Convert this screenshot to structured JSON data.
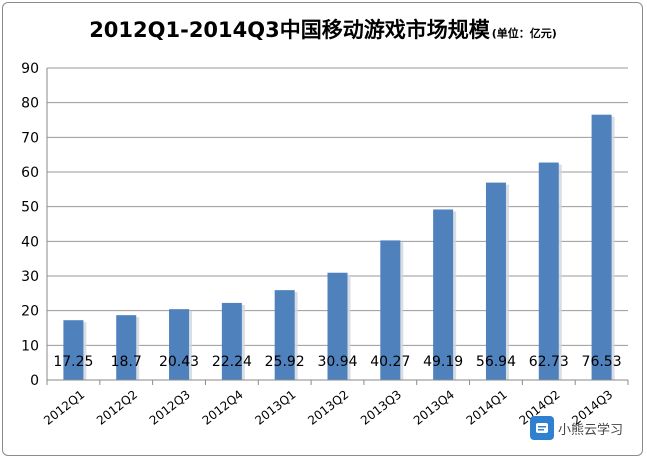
{
  "chart_data": {
    "type": "bar",
    "title": "2012Q1-2014Q3中国移动游戏市场规模",
    "title_unit": "(单位：亿元)",
    "categories": [
      "2012Q1",
      "2012Q2",
      "2012Q3",
      "2012Q4",
      "2013Q1",
      "2013Q2",
      "2013Q3",
      "2013Q4",
      "2014Q1",
      "2014Q2",
      "2014Q3"
    ],
    "values": [
      17.25,
      18.7,
      20.43,
      22.24,
      25.92,
      30.94,
      40.27,
      49.19,
      56.94,
      62.73,
      76.53
    ],
    "value_labels": [
      "17.25",
      "18.7",
      "20.43",
      "22.24",
      "25.92",
      "30.94",
      "40.27",
      "49.19",
      "56.94",
      "62.73",
      "76.53"
    ],
    "yticks": [
      "0",
      "10",
      "20",
      "30",
      "40",
      "50",
      "60",
      "70",
      "80",
      "90"
    ],
    "ylim": [
      0,
      90
    ],
    "grid": true,
    "legend": "none",
    "bar_color": "#4f81bd",
    "grid_color": "#9a9a9a",
    "xlabel": "",
    "ylabel": ""
  },
  "watermark": {
    "text": "小熊云学习",
    "icon": "cloud-book-icon"
  }
}
